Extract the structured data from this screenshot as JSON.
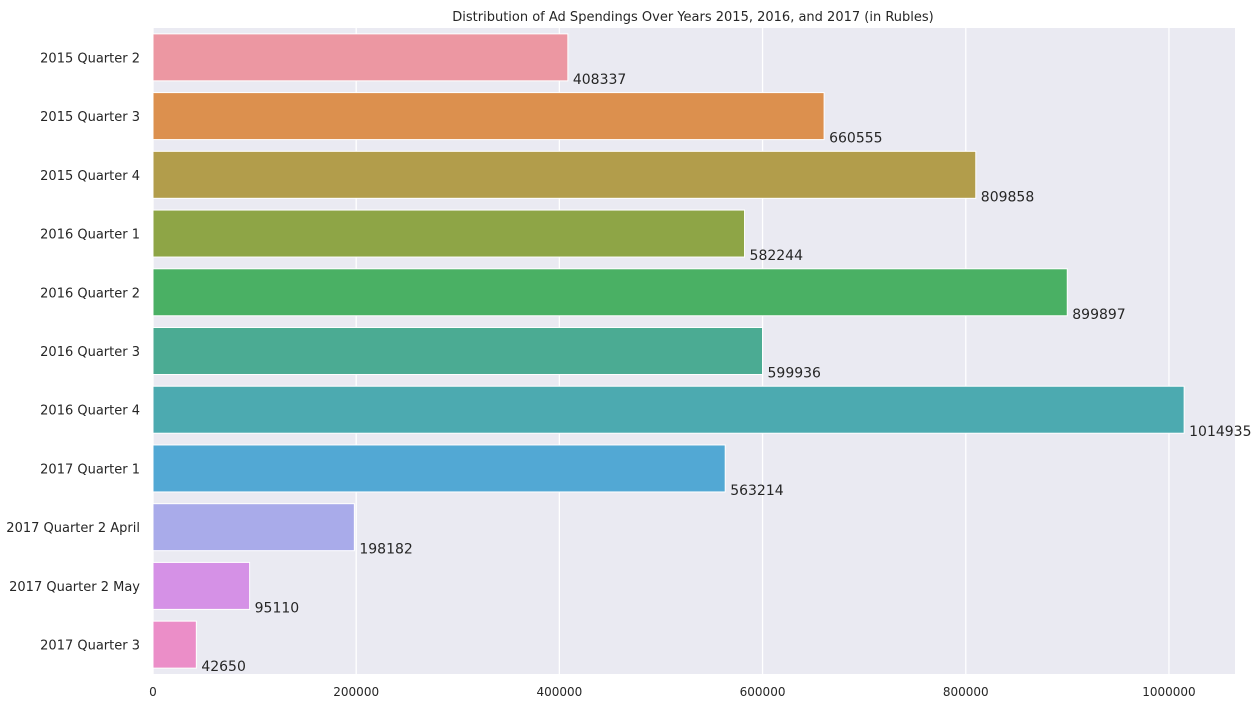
{
  "chart_data": {
    "type": "bar",
    "orientation": "horizontal",
    "title": "Distribution of Ad Spendings Over Years 2015, 2016, and 2017 (in Rubles)",
    "xlabel": "",
    "ylabel": "",
    "xlim": [
      0,
      1065000
    ],
    "xticks": [
      "0",
      "200000",
      "400000",
      "600000",
      "800000",
      "1000000"
    ],
    "xtick_values": [
      0,
      200000,
      400000,
      600000,
      800000,
      1000000
    ],
    "grid": true,
    "categories": [
      "2015 Quarter 2",
      "2015 Quarter 3",
      "2015 Quarter 4",
      "2016 Quarter 1",
      "2016 Quarter 2",
      "2016 Quarter 3",
      "2016 Quarter 4",
      "2017 Quarter 1",
      "2017 Quarter 2 April",
      "2017 Quarter 2 May",
      "2017 Quarter 3"
    ],
    "values": [
      408337,
      660555,
      809858,
      582244,
      899897,
      599936,
      1014935,
      563214,
      198182,
      95110,
      42650
    ],
    "value_labels": [
      "408337",
      "660555",
      "809858",
      "582244",
      "899897",
      "599936",
      "1014935",
      "563214",
      "198182",
      "95110",
      "42650"
    ],
    "colors": [
      "#ec97a2",
      "#dc904e",
      "#b29d4b",
      "#8ea546",
      "#4ab064",
      "#4bab93",
      "#4caab0",
      "#52a8d4",
      "#a9abea",
      "#d591e6",
      "#eb8ec8"
    ],
    "background": "#eaeaf2"
  }
}
